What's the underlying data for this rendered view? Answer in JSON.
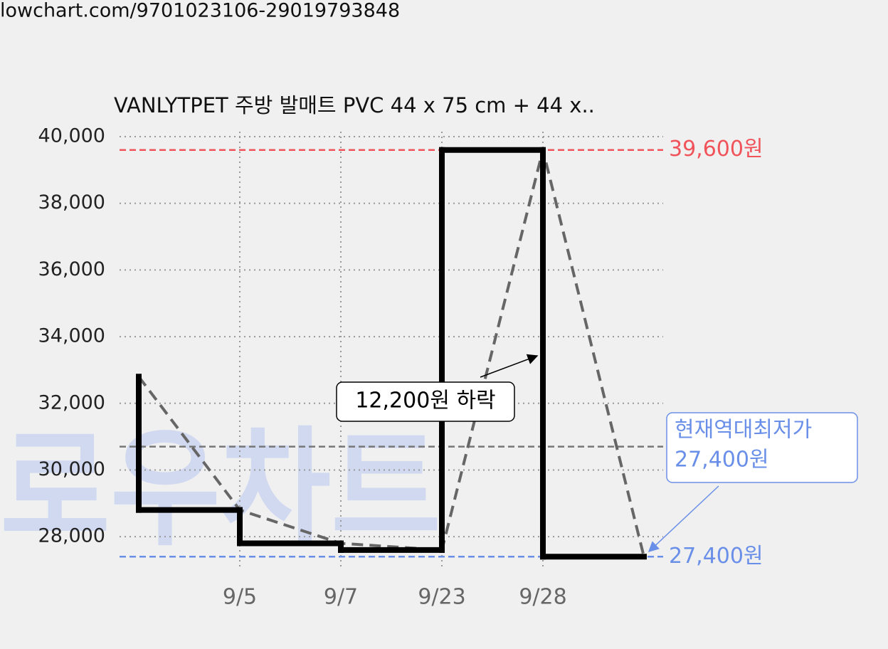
{
  "url": "lowchart.com/9701023106-29019793848",
  "chart_data": {
    "type": "step-line",
    "title": "VANLYTPET 주방 발매트 PVC 44 x 75 cm + 44 x..",
    "watermark": "로우차트",
    "categories": [
      null,
      "9/5",
      "9/7",
      "9/23",
      "9/28",
      null
    ],
    "values": [
      32800,
      28800,
      27800,
      27600,
      39600,
      27400
    ],
    "color": "#000000",
    "trend_color": "#666666",
    "ylim": [
      27000,
      40000
    ],
    "yticks": [
      {
        "value": 28000,
        "label": "28,000"
      },
      {
        "value": 30000,
        "label": "30,000"
      },
      {
        "value": 32000,
        "label": "32,000"
      },
      {
        "value": 34000,
        "label": "34,000"
      },
      {
        "value": 36000,
        "label": "36,000"
      },
      {
        "value": 38000,
        "label": "38,000"
      },
      {
        "value": 40000,
        "label": "40,000"
      }
    ],
    "grid": true,
    "average": 30700,
    "average_color": "#777777",
    "max": {
      "value": 39600,
      "label": "39,600원",
      "color": "#f0545a"
    },
    "min": {
      "value": 27400,
      "label": "27,400원",
      "color": "#6a8fe8"
    },
    "annotation": "12,200원 하락",
    "min_box": [
      "현재역대최저가",
      "27,400원"
    ]
  }
}
